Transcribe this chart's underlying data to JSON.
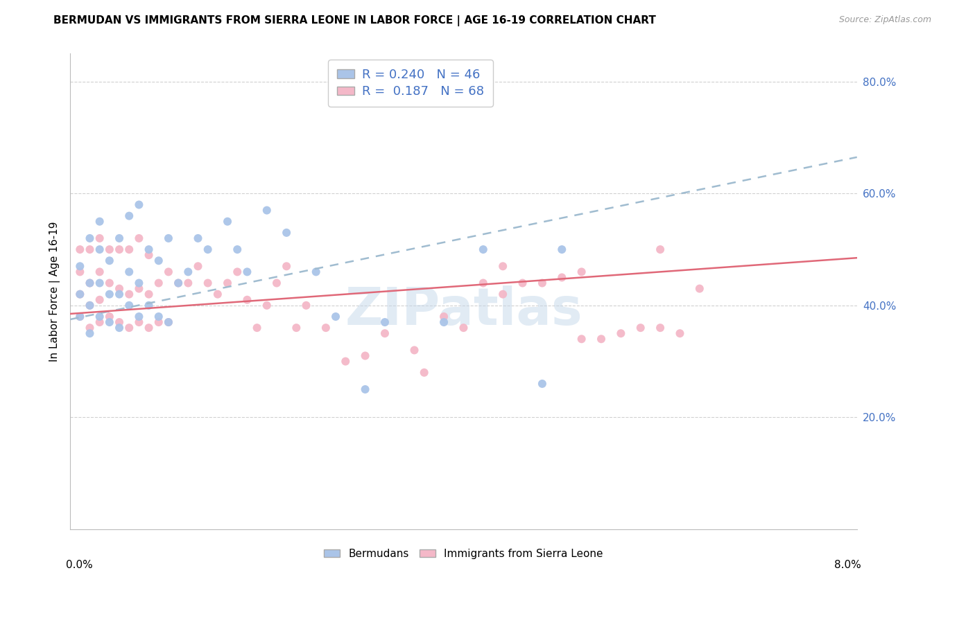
{
  "title": "BERMUDAN VS IMMIGRANTS FROM SIERRA LEONE IN LABOR FORCE | AGE 16-19 CORRELATION CHART",
  "source": "Source: ZipAtlas.com",
  "ylabel_label": "In Labor Force | Age 16-19",
  "xlim": [
    0.0,
    0.08
  ],
  "ylim": [
    0.0,
    0.85
  ],
  "right_yticks": [
    0.2,
    0.4,
    0.6,
    0.8
  ],
  "right_yticklabels": [
    "20.0%",
    "40.0%",
    "60.0%",
    "80.0%"
  ],
  "watermark": "ZIPatlas",
  "bermudans_color": "#aac4e8",
  "sierra_leone_color": "#f4b8c8",
  "trend_bermudan_color": "#a0bcd0",
  "trend_sierra_leone_color": "#e06878",
  "legend_R_bermuda": "R = 0.240",
  "legend_N_bermuda": "N = 46",
  "legend_R_sl": "R =  0.187",
  "legend_N_sl": "N = 68",
  "berm_x": [
    0.001,
    0.001,
    0.001,
    0.002,
    0.002,
    0.002,
    0.002,
    0.003,
    0.003,
    0.003,
    0.003,
    0.004,
    0.004,
    0.004,
    0.005,
    0.005,
    0.005,
    0.006,
    0.006,
    0.006,
    0.007,
    0.007,
    0.007,
    0.008,
    0.008,
    0.009,
    0.009,
    0.01,
    0.01,
    0.011,
    0.012,
    0.013,
    0.014,
    0.016,
    0.017,
    0.018,
    0.02,
    0.022,
    0.025,
    0.027,
    0.03,
    0.032,
    0.038,
    0.042,
    0.048,
    0.05
  ],
  "berm_y": [
    0.38,
    0.42,
    0.47,
    0.35,
    0.4,
    0.44,
    0.52,
    0.38,
    0.44,
    0.5,
    0.55,
    0.37,
    0.42,
    0.48,
    0.36,
    0.42,
    0.52,
    0.4,
    0.46,
    0.56,
    0.38,
    0.44,
    0.58,
    0.4,
    0.5,
    0.38,
    0.48,
    0.37,
    0.52,
    0.44,
    0.46,
    0.52,
    0.5,
    0.55,
    0.5,
    0.46,
    0.57,
    0.53,
    0.46,
    0.38,
    0.25,
    0.37,
    0.37,
    0.5,
    0.26,
    0.5
  ],
  "sl_x": [
    0.001,
    0.001,
    0.001,
    0.001,
    0.002,
    0.002,
    0.002,
    0.002,
    0.003,
    0.003,
    0.003,
    0.003,
    0.004,
    0.004,
    0.004,
    0.005,
    0.005,
    0.005,
    0.006,
    0.006,
    0.006,
    0.007,
    0.007,
    0.007,
    0.008,
    0.008,
    0.008,
    0.009,
    0.009,
    0.01,
    0.01,
    0.011,
    0.012,
    0.013,
    0.014,
    0.015,
    0.016,
    0.017,
    0.018,
    0.019,
    0.02,
    0.021,
    0.022,
    0.023,
    0.024,
    0.026,
    0.028,
    0.03,
    0.032,
    0.035,
    0.036,
    0.038,
    0.04,
    0.042,
    0.044,
    0.046,
    0.048,
    0.05,
    0.052,
    0.054,
    0.056,
    0.058,
    0.06,
    0.062,
    0.064,
    0.052,
    0.044,
    0.06
  ],
  "sl_y": [
    0.38,
    0.42,
    0.46,
    0.5,
    0.36,
    0.4,
    0.44,
    0.5,
    0.37,
    0.41,
    0.46,
    0.52,
    0.38,
    0.44,
    0.5,
    0.37,
    0.43,
    0.5,
    0.36,
    0.42,
    0.5,
    0.37,
    0.43,
    0.52,
    0.36,
    0.42,
    0.49,
    0.37,
    0.44,
    0.37,
    0.46,
    0.44,
    0.44,
    0.47,
    0.44,
    0.42,
    0.44,
    0.46,
    0.41,
    0.36,
    0.4,
    0.44,
    0.47,
    0.36,
    0.4,
    0.36,
    0.3,
    0.31,
    0.35,
    0.32,
    0.28,
    0.38,
    0.36,
    0.44,
    0.42,
    0.44,
    0.44,
    0.45,
    0.46,
    0.34,
    0.35,
    0.36,
    0.36,
    0.35,
    0.43,
    0.34,
    0.47,
    0.5
  ]
}
